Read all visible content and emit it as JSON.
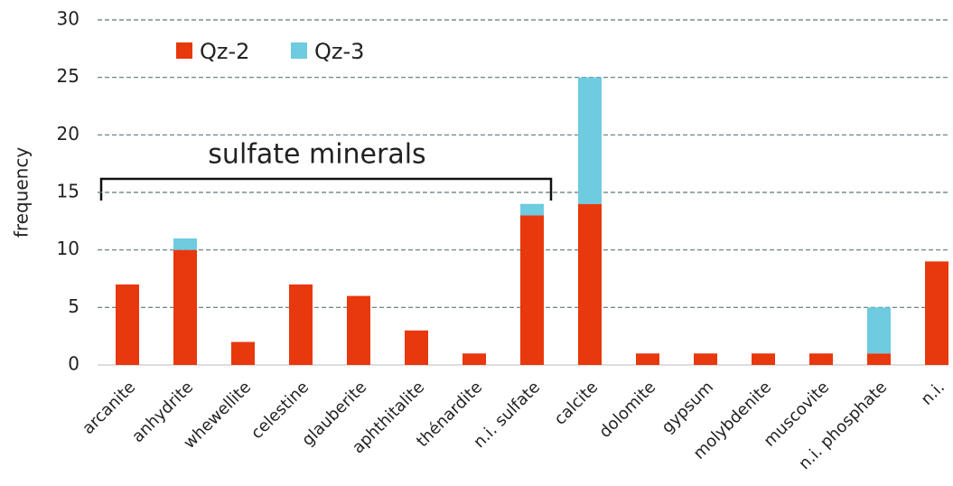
{
  "chart_data": {
    "type": "stacked_bar",
    "y_label": "frequency",
    "annotation": "sulfate minerals",
    "categories": [
      "arcanite",
      "anhydrite",
      "whewellite",
      "celestine",
      "glauberite",
      "aphthitalite",
      "thénardite",
      "n.i. sulfate",
      "calcite",
      "dolomite",
      "gypsum",
      "molybdenite",
      "muscovite",
      "n.i. phosphate",
      "n.i."
    ],
    "series": [
      {
        "name": "Qz-2",
        "color": "#e8380d",
        "values": [
          7,
          10,
          2,
          7,
          6,
          3,
          1,
          13,
          14,
          1,
          1,
          1,
          1,
          1,
          9
        ]
      },
      {
        "name": "Qz-3",
        "color": "#6ecbe0",
        "values": [
          0,
          1,
          0,
          0,
          0,
          0,
          0,
          1,
          11,
          0,
          0,
          0,
          0,
          4,
          0
        ]
      }
    ],
    "ylim": [
      0,
      30
    ],
    "yticks": [
      0,
      5,
      10,
      15,
      20,
      25,
      30
    ],
    "grid": true,
    "legend": "top-left"
  }
}
